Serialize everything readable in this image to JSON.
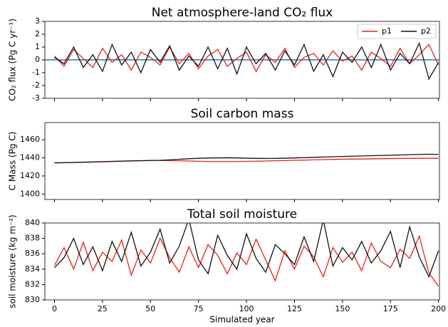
{
  "chart_data": [
    {
      "type": "line",
      "title": "Net atmosphere-land CO₂ flux",
      "y_label": "CO₂ flux (Pg C yr⁻¹)",
      "x": [
        0,
        5,
        10,
        15,
        20,
        25,
        30,
        35,
        40,
        45,
        50,
        55,
        60,
        65,
        70,
        75,
        80,
        85,
        90,
        95,
        100,
        105,
        110,
        115,
        120,
        125,
        130,
        135,
        140,
        145,
        150,
        155,
        160,
        165,
        170,
        175,
        180,
        185,
        190,
        195,
        200
      ],
      "xlim": [
        -5,
        200.5
      ],
      "ylim": [
        -3,
        3
      ],
      "yticks": [
        -3,
        -2,
        -1,
        0,
        1,
        2,
        3
      ],
      "reference_line": 0,
      "reference_color": "#1f77b4",
      "legend": "upper right",
      "series": [
        {
          "name": "p1",
          "color": "#e8211d",
          "values": [
            0.3,
            -0.5,
            0.8,
            0.1,
            -0.6,
            0.9,
            -0.2,
            0.4,
            -0.8,
            0.6,
            0.2,
            -0.4,
            1.0,
            -0.3,
            0.5,
            -0.7,
            0.3,
            0.8,
            -0.5,
            0.1,
            0.6,
            -0.9,
            0.4,
            -0.2,
            0.9,
            -0.6,
            0.2,
            0.5,
            -0.4,
            0.7,
            -0.1,
            0.3,
            -0.8,
            0.6,
            0.1,
            -0.5,
            0.9,
            -0.3,
            0.4,
            1.2,
            -0.4
          ]
        },
        {
          "name": "p2",
          "color": "#111111",
          "values": [
            0.2,
            -0.3,
            1.0,
            -0.6,
            0.4,
            -0.9,
            1.2,
            -0.4,
            0.6,
            -1.0,
            0.8,
            -0.2,
            1.1,
            -0.8,
            0.3,
            -0.5,
            1.0,
            -0.7,
            0.9,
            -1.1,
            1.0,
            -0.3,
            0.5,
            -0.8,
            0.7,
            -0.4,
            1.2,
            -0.9,
            0.4,
            -1.3,
            0.6,
            -0.2,
            1.0,
            -0.6,
            1.2,
            -0.8,
            0.5,
            -0.3,
            1.3,
            -1.5,
            -0.2
          ]
        }
      ]
    },
    {
      "type": "line",
      "title": "Soil carbon mass",
      "y_label": "C Mass (Pg C)",
      "x": [
        0,
        5,
        10,
        15,
        20,
        25,
        30,
        35,
        40,
        45,
        50,
        55,
        60,
        65,
        70,
        75,
        80,
        85,
        90,
        95,
        100,
        105,
        110,
        115,
        120,
        125,
        130,
        135,
        140,
        145,
        150,
        155,
        160,
        165,
        170,
        175,
        180,
        185,
        190,
        195,
        200
      ],
      "xlim": [
        -5,
        200.5
      ],
      "ylim": [
        1394,
        1479
      ],
      "yticks": [
        1400,
        1420,
        1440,
        1460
      ],
      "series": [
        {
          "name": "p1",
          "color": "#e8211d",
          "values": [
            1434.5,
            1434.6,
            1434.8,
            1435.0,
            1435.3,
            1435.6,
            1435.9,
            1436.2,
            1436.5,
            1436.8,
            1437.0,
            1437.1,
            1437.0,
            1436.8,
            1436.5,
            1436.2,
            1436.0,
            1435.9,
            1435.9,
            1436.0,
            1436.1,
            1436.3,
            1436.5,
            1436.8,
            1437.0,
            1437.3,
            1437.5,
            1437.8,
            1438.0,
            1438.3,
            1438.5,
            1438.6,
            1438.7,
            1438.9,
            1439.0,
            1439.2,
            1439.3,
            1439.4,
            1439.5,
            1439.6,
            1439.6
          ]
        },
        {
          "name": "p2",
          "color": "#111111",
          "values": [
            1434.5,
            1434.6,
            1434.9,
            1435.2,
            1435.5,
            1435.8,
            1436.1,
            1436.4,
            1436.7,
            1436.9,
            1437.1,
            1437.3,
            1437.8,
            1438.4,
            1439.0,
            1439.5,
            1439.8,
            1440.0,
            1440.1,
            1439.9,
            1439.6,
            1439.4,
            1439.3,
            1439.4,
            1439.6,
            1439.9,
            1440.2,
            1440.5,
            1440.9,
            1441.2,
            1441.5,
            1441.8,
            1442.1,
            1442.4,
            1442.6,
            1442.9,
            1443.2,
            1443.5,
            1443.8,
            1444.0,
            1443.8
          ]
        }
      ]
    },
    {
      "type": "line",
      "title": "Total soil moisture",
      "y_label": "soil moisture (kg m⁻²)",
      "x_label": "Simulated year",
      "x": [
        0,
        5,
        10,
        15,
        20,
        25,
        30,
        35,
        40,
        45,
        50,
        55,
        60,
        65,
        70,
        75,
        80,
        85,
        90,
        95,
        100,
        105,
        110,
        115,
        120,
        125,
        130,
        135,
        140,
        145,
        150,
        155,
        160,
        165,
        170,
        175,
        180,
        185,
        190,
        195,
        200
      ],
      "xlim": [
        -5,
        200.5
      ],
      "xticks": [
        0,
        25,
        50,
        75,
        100,
        125,
        150,
        175,
        200
      ],
      "ylim": [
        830,
        840
      ],
      "yticks": [
        830,
        832,
        834,
        836,
        838,
        840
      ],
      "series": [
        {
          "name": "p1",
          "color": "#e8211d",
          "values": [
            834.5,
            836.8,
            834.0,
            837.5,
            833.8,
            836.2,
            835.0,
            837.8,
            833.2,
            836.5,
            834.8,
            838.0,
            835.5,
            833.6,
            836.9,
            834.2,
            837.2,
            835.8,
            833.4,
            836.1,
            834.6,
            837.9,
            835.2,
            832.5,
            836.4,
            834.0,
            837.0,
            835.6,
            833.0,
            836.8,
            834.9,
            836.2,
            833.8,
            837.4,
            835.0,
            834.2,
            836.6,
            835.4,
            838.3,
            833.5,
            831.8
          ]
        },
        {
          "name": "p2",
          "color": "#111111",
          "values": [
            834.2,
            835.5,
            838.0,
            834.6,
            836.9,
            833.8,
            837.6,
            835.0,
            838.8,
            834.4,
            836.2,
            839.2,
            834.8,
            837.0,
            840.5,
            835.2,
            833.4,
            838.4,
            835.8,
            834.0,
            838.6,
            835.4,
            833.6,
            837.2,
            836.0,
            834.6,
            838.2,
            835.0,
            840.4,
            834.4,
            836.8,
            835.2,
            837.6,
            834.8,
            836.4,
            838.9,
            834.2,
            839.5,
            835.6,
            833.0,
            836.4
          ]
        }
      ]
    }
  ]
}
